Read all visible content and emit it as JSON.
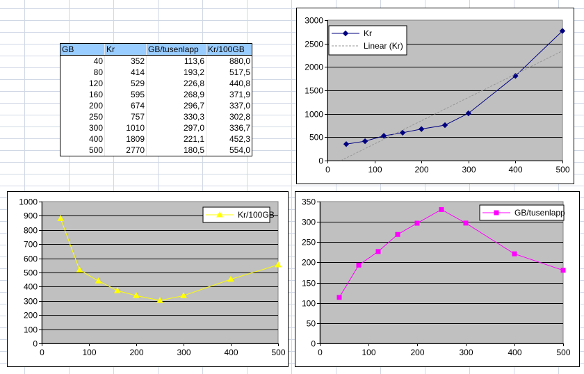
{
  "table": {
    "headers": [
      "GB",
      "Kr",
      "GB/tusenlapp",
      "Kr/100GB"
    ],
    "rows": [
      [
        "40",
        "352",
        "113,6",
        "880,0"
      ],
      [
        "80",
        "414",
        "193,2",
        "517,5"
      ],
      [
        "120",
        "529",
        "226,8",
        "440,8"
      ],
      [
        "160",
        "595",
        "268,9",
        "371,9"
      ],
      [
        "200",
        "674",
        "296,7",
        "337,0"
      ],
      [
        "250",
        "757",
        "330,3",
        "302,8"
      ],
      [
        "300",
        "1010",
        "297,0",
        "336,7"
      ],
      [
        "400",
        "1809",
        "221,1",
        "452,3"
      ],
      [
        "500",
        "2770",
        "180,5",
        "554,0"
      ]
    ]
  },
  "chart_data": [
    {
      "id": "kr",
      "type": "line",
      "x": [
        40,
        80,
        120,
        160,
        200,
        250,
        300,
        400,
        500
      ],
      "series": [
        {
          "name": "Kr",
          "values": [
            352,
            414,
            529,
            595,
            674,
            757,
            1010,
            1809,
            2770
          ],
          "color": "#000080",
          "marker": "diamond"
        },
        {
          "name": "Linear (Kr)",
          "trendline": true,
          "color": "#969696",
          "dashed": true
        }
      ],
      "xticks": [
        "0",
        "100",
        "200",
        "300",
        "400",
        "500"
      ],
      "yticks": [
        "0",
        "500",
        "1000",
        "1500",
        "2000",
        "2500",
        "3000"
      ],
      "xlim": [
        0,
        500
      ],
      "ylim": [
        0,
        3000
      ],
      "legend": "top-left",
      "plot_bg": "#c0c0c0",
      "grid": true
    },
    {
      "id": "kr100",
      "type": "line",
      "x": [
        40,
        80,
        120,
        160,
        200,
        250,
        300,
        400,
        500
      ],
      "series": [
        {
          "name": "Kr/100GB",
          "values": [
            880.0,
            517.5,
            440.8,
            371.9,
            337.0,
            302.8,
            336.7,
            452.3,
            554.0
          ],
          "color": "#ffff00",
          "marker": "triangle"
        }
      ],
      "xticks": [
        "0",
        "100",
        "200",
        "300",
        "400",
        "500"
      ],
      "yticks": [
        "0",
        "100",
        "200",
        "300",
        "400",
        "500",
        "600",
        "700",
        "800",
        "900",
        "1000"
      ],
      "xlim": [
        0,
        500
      ],
      "ylim": [
        0,
        1000
      ],
      "legend": "top-right",
      "plot_bg": "#c0c0c0",
      "grid": true
    },
    {
      "id": "gbt",
      "type": "line",
      "x": [
        40,
        80,
        120,
        160,
        200,
        250,
        300,
        400,
        500
      ],
      "series": [
        {
          "name": "GB/tusenlapp",
          "values": [
            113.6,
            193.2,
            226.8,
            268.9,
            296.7,
            330.3,
            297.0,
            221.1,
            180.5
          ],
          "color": "#ff00ff",
          "marker": "square"
        }
      ],
      "xticks": [
        "0",
        "100",
        "200",
        "300",
        "400",
        "500"
      ],
      "yticks": [
        "0",
        "50",
        "100",
        "150",
        "200",
        "250",
        "300",
        "350"
      ],
      "xlim": [
        0,
        500
      ],
      "ylim": [
        0,
        350
      ],
      "legend": "top-right",
      "plot_bg": "#c0c0c0",
      "grid": true
    }
  ]
}
